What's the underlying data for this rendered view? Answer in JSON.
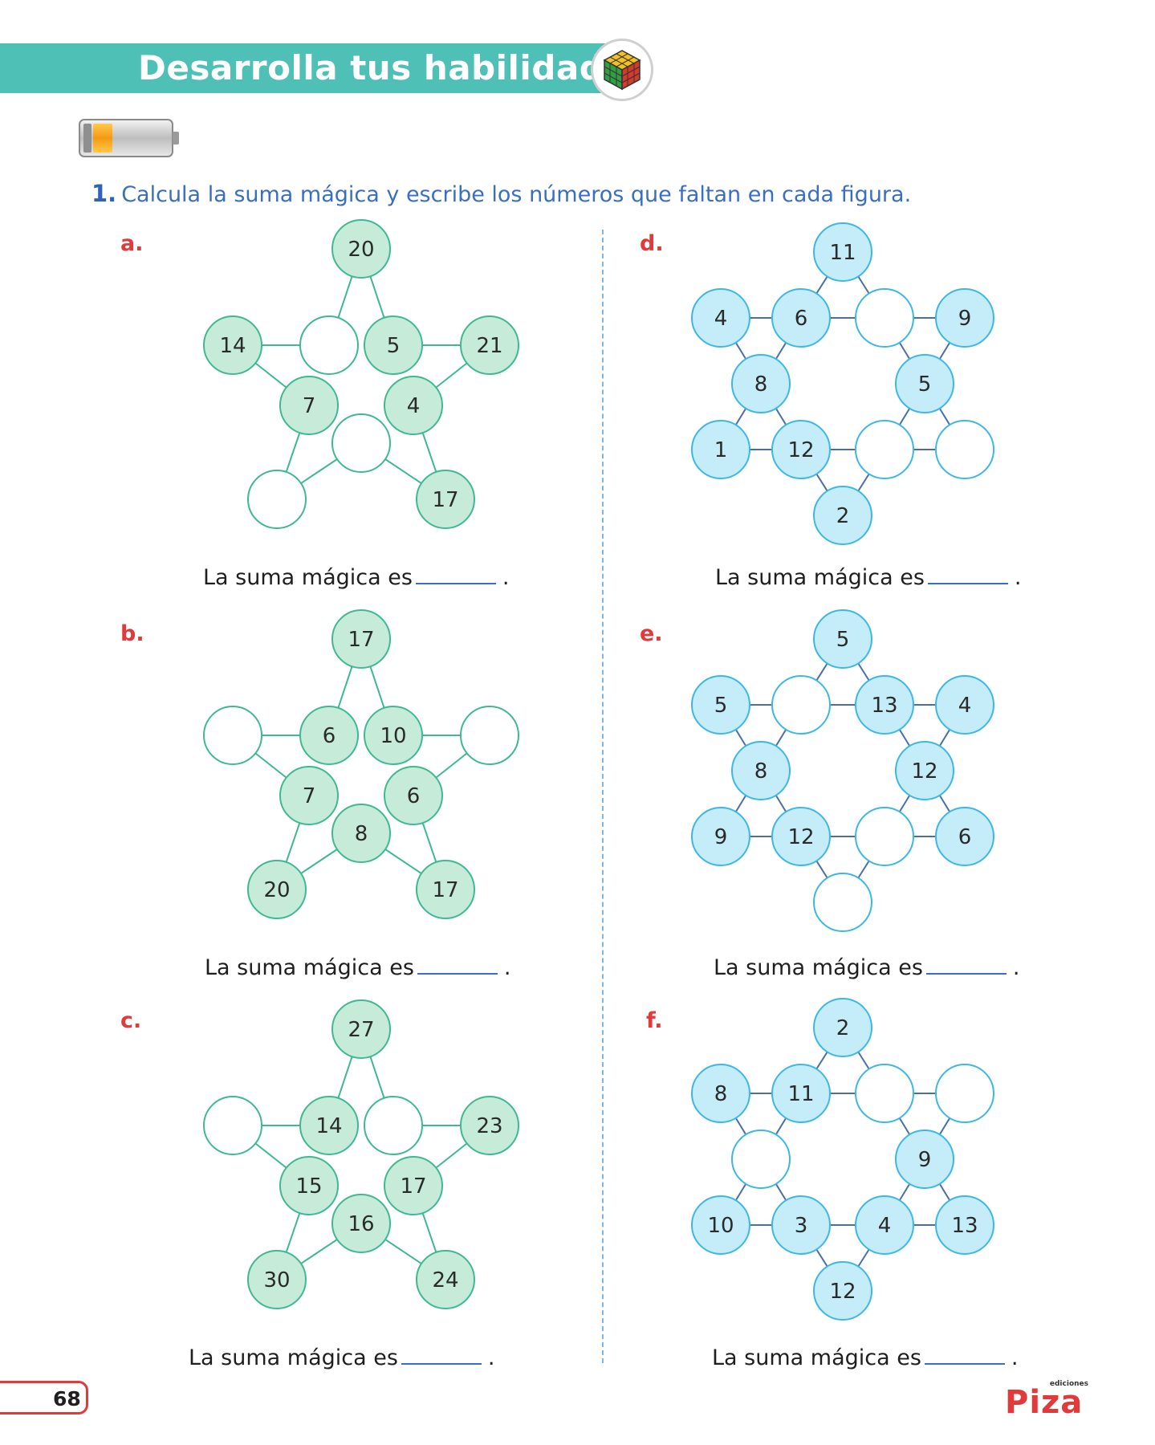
{
  "header": {
    "title": "Desarrolla tus habilidades",
    "icon": "rubiks-cube-icon"
  },
  "task": {
    "number": "1.",
    "text": "Calcula la suma mágica y escribe los números que faltan en  cada figura."
  },
  "caption_text": "La suma mágica es",
  "caption_end": ".",
  "colors": {
    "green_fill": "#c6ecd9",
    "green_stroke": "#3fb893",
    "blue_fill": "#c4ecf9",
    "blue_stroke": "#3db8e4",
    "accent_red": "#e23a3a"
  },
  "puzzles": [
    {
      "label": "a.",
      "type": "star",
      "values": [
        "20",
        "",
        "5",
        "21",
        "4",
        "17",
        "",
        "",
        "7",
        "14"
      ]
    },
    {
      "label": "b.",
      "type": "star",
      "values": [
        "17",
        "6",
        "10",
        "",
        "6",
        "17",
        "8",
        "20",
        "7",
        ""
      ]
    },
    {
      "label": "c.",
      "type": "star",
      "values": [
        "27",
        "14",
        "",
        "23",
        "17",
        "24",
        "16",
        "30",
        "15",
        ""
      ]
    },
    {
      "label": "d.",
      "type": "hexagram",
      "values": [
        "11",
        "6",
        "",
        "9",
        "5",
        "",
        "",
        "2",
        "12",
        "1",
        "8",
        "4"
      ]
    },
    {
      "label": "e.",
      "type": "hexagram",
      "values": [
        "5",
        "",
        "13",
        "4",
        "12",
        "6",
        "",
        "",
        "12",
        "9",
        "8",
        "5"
      ]
    },
    {
      "label": "f.",
      "type": "hexagram",
      "values": [
        "2",
        "11",
        "",
        "",
        "9",
        "13",
        "4",
        "12",
        "3",
        "10",
        "",
        "8"
      ]
    }
  ],
  "footer": {
    "page_number": "68",
    "logo_small": "ediciones",
    "logo_main": "Piza"
  }
}
